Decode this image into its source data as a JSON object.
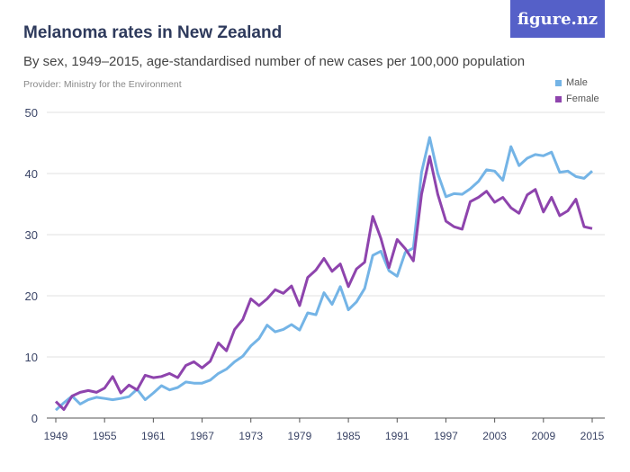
{
  "logo": "figure.nz",
  "chart_data": {
    "type": "line",
    "title": "Melanoma rates in New Zealand",
    "subtitle": "By sex, 1949–2015, age-standardised number of new cases per 100,000 population",
    "provider": "Provider: Ministry for the Environment",
    "xlim": [
      1949,
      2015
    ],
    "ylim": [
      0,
      50
    ],
    "xticks": [
      1949,
      1955,
      1961,
      1967,
      1973,
      1979,
      1985,
      1991,
      1997,
      2003,
      2009,
      2015
    ],
    "yticks": [
      0,
      10,
      20,
      30,
      40,
      50
    ],
    "grid": true,
    "legend_position": "top-right",
    "x_start": 1949,
    "series": [
      {
        "name": "Male",
        "color": "#74b4e6",
        "values": [
          1.3,
          2.5,
          3.6,
          2.3,
          3.0,
          3.4,
          3.2,
          3.0,
          3.2,
          3.5,
          4.7,
          3.0,
          4.1,
          5.3,
          4.6,
          5.0,
          5.9,
          5.7,
          5.7,
          6.2,
          7.3,
          8.0,
          9.2,
          10.1,
          11.8,
          13.0,
          15.2,
          14.1,
          14.5,
          15.3,
          14.4,
          17.2,
          16.9,
          20.5,
          18.6,
          21.5,
          17.7,
          19.0,
          21.2,
          26.6,
          27.3,
          24.1,
          23.2,
          27.1,
          27.8,
          40.2,
          45.9,
          40.0,
          36.2,
          36.7,
          36.6,
          37.5,
          38.7,
          40.6,
          40.4,
          38.9,
          44.4,
          41.3,
          42.5,
          43.1,
          42.9,
          43.5,
          40.2,
          40.4,
          39.5,
          39.2,
          40.4
        ]
      },
      {
        "name": "Female",
        "color": "#8e44ad",
        "values": [
          2.7,
          1.4,
          3.6,
          4.2,
          4.5,
          4.2,
          4.9,
          6.8,
          4.1,
          5.4,
          4.6,
          7.0,
          6.6,
          6.8,
          7.3,
          6.6,
          8.6,
          9.2,
          8.2,
          9.3,
          12.3,
          11.0,
          14.5,
          16.1,
          19.5,
          18.4,
          19.5,
          21.0,
          20.4,
          21.6,
          18.4,
          23.0,
          24.2,
          26.1,
          24.0,
          25.2,
          21.5,
          24.4,
          25.5,
          33.0,
          29.4,
          24.6,
          29.2,
          27.7,
          25.7,
          36.6,
          42.8,
          36.6,
          32.2,
          31.3,
          30.9,
          35.4,
          36.1,
          37.1,
          35.3,
          36.1,
          34.4,
          33.5,
          36.5,
          37.4,
          33.7,
          36.1,
          33.1,
          33.9,
          35.8,
          31.3,
          31.0
        ]
      }
    ]
  }
}
